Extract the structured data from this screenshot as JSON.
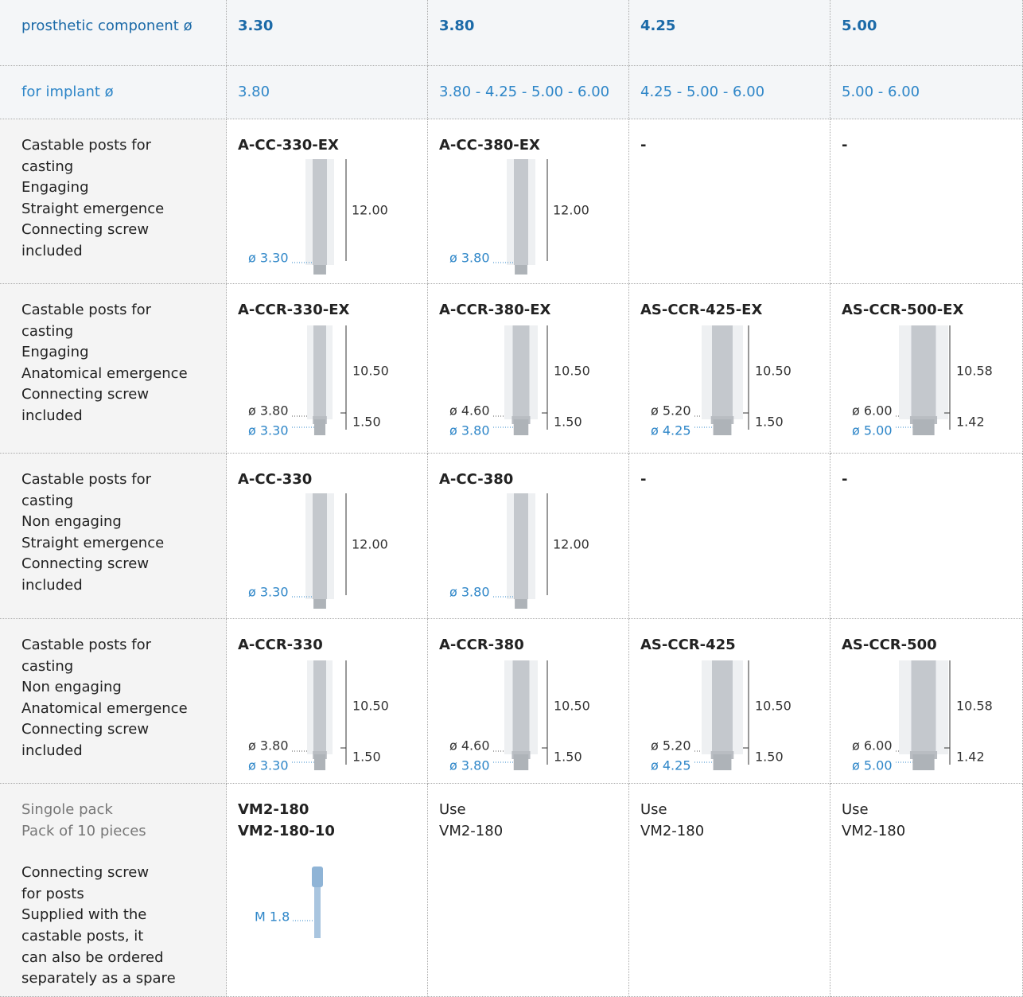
{
  "table": {
    "header": [
      "prosthetic component ø",
      "3.30",
      "3.80",
      "4.25",
      "5.00"
    ],
    "implant": [
      "for implant ø",
      "3.80",
      "3.80 - 4.25 - 5.00 - 6.00",
      "4.25 - 5.00 - 6.00",
      "5.00 - 6.00"
    ],
    "rows": [
      {
        "description": [
          "Castable posts for",
          "casting",
          "Engaging",
          "Straight emergence",
          "Connecting screw",
          "included"
        ],
        "cells": [
          {
            "code": "A-CC-330-EX",
            "height": "12.00",
            "diameter": "ø 3.30"
          },
          {
            "code": "A-CC-380-EX",
            "height": "12.00",
            "diameter": "ø 3.80"
          },
          {
            "code": "-"
          },
          {
            "code": "-"
          }
        ]
      },
      {
        "description": [
          "Castable posts for",
          "casting",
          "Engaging",
          "Anatomical emergence",
          "Connecting screw",
          "included"
        ],
        "cells": [
          {
            "code": "A-CCR-330-EX",
            "height": "10.50",
            "base": "1.50",
            "outer": "ø 3.80",
            "diameter": "ø 3.30"
          },
          {
            "code": "A-CCR-380-EX",
            "height": "10.50",
            "base": "1.50",
            "outer": "ø 4.60",
            "diameter": "ø 3.80"
          },
          {
            "code": "AS-CCR-425-EX",
            "height": "10.50",
            "base": "1.50",
            "outer": "ø 5.20",
            "diameter": "ø 4.25"
          },
          {
            "code": "AS-CCR-500-EX",
            "height": "10.58",
            "base": "1.42",
            "outer": "ø 6.00",
            "diameter": "ø 5.00"
          }
        ]
      },
      {
        "description": [
          "Castable posts for",
          "casting",
          "Non engaging",
          "Straight emergence",
          "Connecting screw",
          "included"
        ],
        "cells": [
          {
            "code": "A-CC-330",
            "height": "12.00",
            "diameter": "ø 3.30"
          },
          {
            "code": "A-CC-380",
            "height": "12.00",
            "diameter": "ø 3.80"
          },
          {
            "code": "-"
          },
          {
            "code": "-"
          }
        ]
      },
      {
        "description": [
          "Castable posts for",
          "casting",
          "Non engaging",
          "Anatomical emergence",
          "Connecting screw",
          "included"
        ],
        "cells": [
          {
            "code": "A-CCR-330",
            "height": "10.50",
            "base": "1.50",
            "outer": "ø 3.80",
            "diameter": "ø 3.30"
          },
          {
            "code": "A-CCR-380",
            "height": "10.50",
            "base": "1.50",
            "outer": "ø 4.60",
            "diameter": "ø 3.80"
          },
          {
            "code": "AS-CCR-425",
            "height": "10.50",
            "base": "1.50",
            "outer": "ø 5.20",
            "diameter": "ø 4.25"
          },
          {
            "code": "AS-CCR-500",
            "height": "10.58",
            "base": "1.42",
            "outer": "ø 6.00",
            "diameter": "ø 5.00"
          }
        ]
      }
    ],
    "screw": {
      "description_gray": [
        "Singole pack",
        "Pack of 10 pieces"
      ],
      "description": [
        "Connecting screw",
        "for posts",
        "Supplied with the",
        "castable posts, it",
        "can also be ordered",
        "separately as a spare"
      ],
      "cells": [
        {
          "lines": [
            "VM2-180",
            "VM2-180-10"
          ],
          "label": "M 1.8"
        },
        {
          "lines": [
            "Use",
            "VM2-180"
          ]
        },
        {
          "lines": [
            "Use",
            "VM2-180"
          ]
        },
        {
          "lines": [
            "Use",
            "VM2-180"
          ]
        }
      ]
    }
  }
}
